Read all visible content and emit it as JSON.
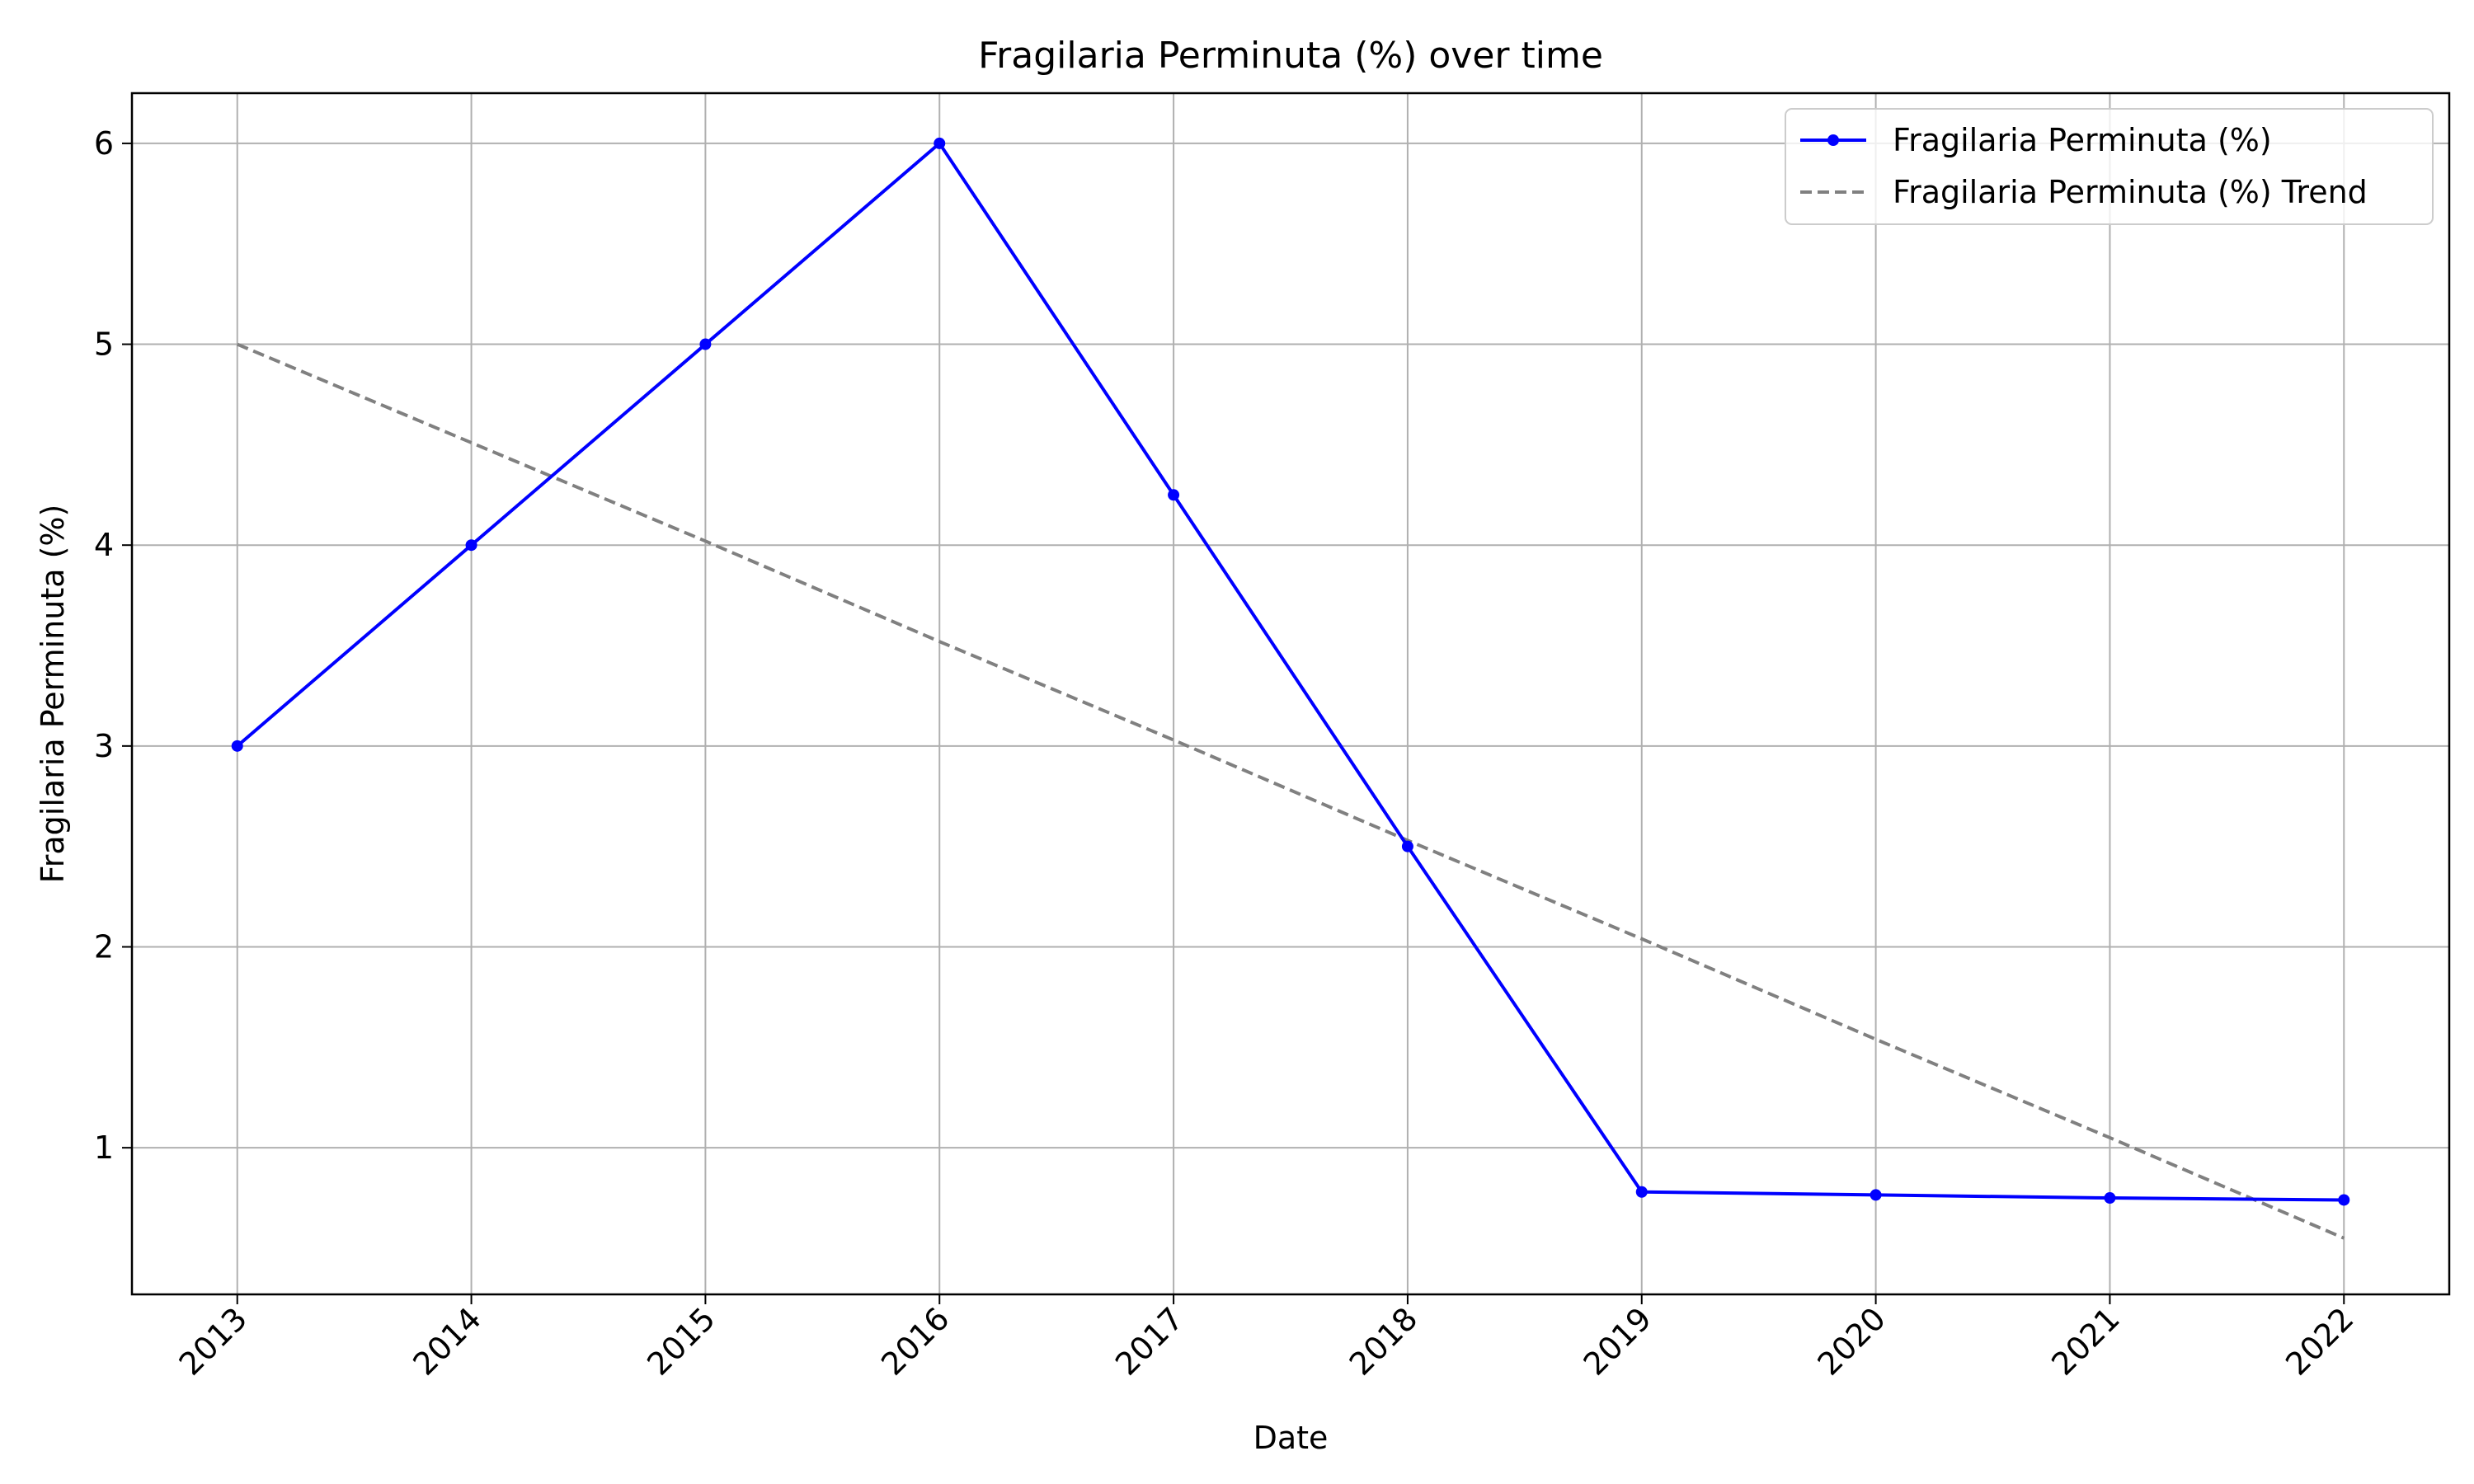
{
  "chart_data": {
    "type": "line",
    "title": "Fragilaria Perminuta (%) over time",
    "xlabel": "Date",
    "ylabel": "Fragilaria Perminuta (%)",
    "x": [
      "2013",
      "2014",
      "2015",
      "2016",
      "2017",
      "2018",
      "2019",
      "2020",
      "2021",
      "2022"
    ],
    "xlim": [
      2012.55,
      2022.45
    ],
    "ylim": [
      0.27,
      6.25
    ],
    "yticks": [
      1,
      2,
      3,
      4,
      5,
      6
    ],
    "grid": true,
    "legend_position": "top-right",
    "series": [
      {
        "name": "Fragilaria Perminuta (%)",
        "color": "#0000ff",
        "style": "solid",
        "marker": "circle",
        "values": [
          3.0,
          4.0,
          5.0,
          6.0,
          4.25,
          2.5,
          0.78,
          0.765,
          0.75,
          0.74
        ]
      },
      {
        "name": "Fragilaria Perminuta (%) Trend",
        "color": "#808080",
        "style": "dashed",
        "marker": "none",
        "values": [
          5.0,
          4.51,
          4.02,
          3.52,
          3.03,
          2.53,
          2.04,
          1.54,
          1.05,
          0.55
        ]
      }
    ]
  }
}
